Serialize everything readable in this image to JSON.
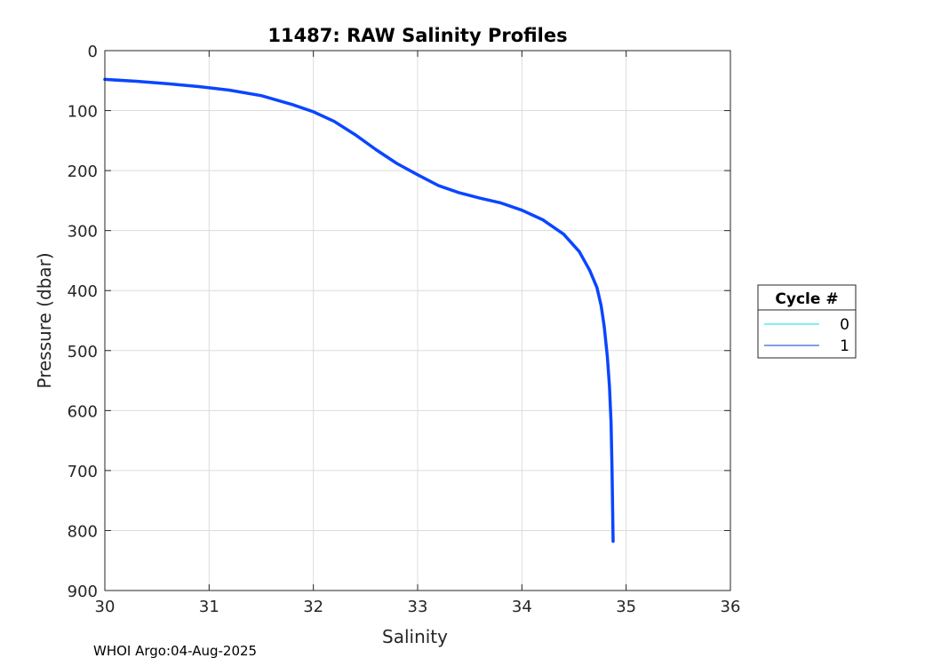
{
  "chart_data": {
    "type": "line",
    "title": "11487: RAW Salinity Profiles",
    "xlabel": "Salinity",
    "ylabel": "Pressure (dbar)",
    "xlim": [
      30,
      36
    ],
    "ylim": [
      0,
      900
    ],
    "y_reversed": true,
    "x_ticks": [
      "30",
      "31",
      "32",
      "33",
      "34",
      "35",
      "36"
    ],
    "y_ticks": [
      "0",
      "100",
      "200",
      "300",
      "400",
      "500",
      "600",
      "700",
      "800",
      "900"
    ],
    "grid": true,
    "legend": {
      "title": "Cycle #",
      "placement": "outside-right",
      "entries": [
        {
          "label": "0",
          "color": "#00e5e5"
        },
        {
          "label": "1",
          "color": "#0a3cc8"
        }
      ]
    },
    "series": [
      {
        "name": "1",
        "color": "#0a46ff",
        "points": [
          [
            30.0,
            48
          ],
          [
            30.3,
            51
          ],
          [
            30.6,
            55
          ],
          [
            30.9,
            60
          ],
          [
            31.2,
            66
          ],
          [
            31.5,
            75
          ],
          [
            31.8,
            90
          ],
          [
            32.0,
            102
          ],
          [
            32.2,
            118
          ],
          [
            32.4,
            140
          ],
          [
            32.6,
            165
          ],
          [
            32.8,
            188
          ],
          [
            33.0,
            207
          ],
          [
            33.2,
            225
          ],
          [
            33.4,
            237
          ],
          [
            33.6,
            246
          ],
          [
            33.8,
            254
          ],
          [
            34.0,
            266
          ],
          [
            34.2,
            282
          ],
          [
            34.4,
            306
          ],
          [
            34.55,
            335
          ],
          [
            34.65,
            366
          ],
          [
            34.72,
            395
          ],
          [
            34.76,
            425
          ],
          [
            34.79,
            460
          ],
          [
            34.82,
            510
          ],
          [
            34.84,
            560
          ],
          [
            34.855,
            620
          ],
          [
            34.865,
            700
          ],
          [
            34.87,
            760
          ],
          [
            34.875,
            818
          ]
        ]
      }
    ]
  },
  "footer": "WHOI Argo:04-Aug-2025"
}
